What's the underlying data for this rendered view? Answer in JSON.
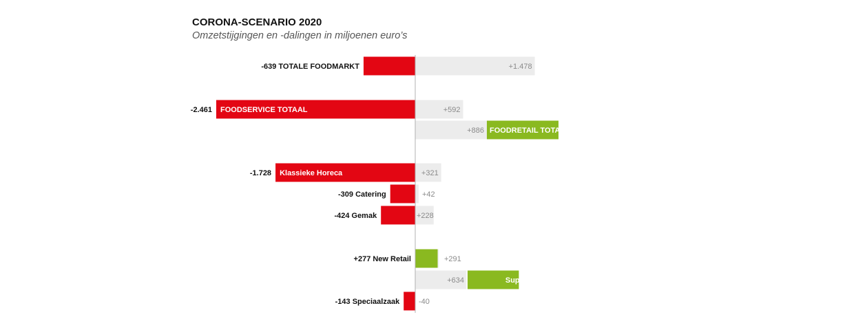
{
  "header": {
    "title": "CORONA-SCENARIO 2020",
    "subtitle": "Omzetstijgingen en -dalingen in miljoenen euro’s"
  },
  "colors": {
    "negative": "#e30613",
    "positive": "#8ab920",
    "background_bar": "#ececec",
    "axis": "#b0b0b0"
  },
  "chart_data": {
    "type": "bar",
    "orientation": "horizontal-diverging",
    "categories": [
      "TOTALE FOODMARKT",
      "FOODSERVICE TOTAAL",
      "FOODRETAIL TOTAAL",
      "Klassieke Horeca",
      "Catering",
      "Gemak",
      "New Retail",
      "Supermarkt",
      "Speciaalzaak"
    ],
    "series": [
      {
        "values": [
          -639,
          -2461,
          886,
          -1728,
          -309,
          -424,
          277,
          634,
          -143
        ]
      },
      {
        "values": [
          1478,
          592,
          886,
          321,
          42,
          228,
          291,
          634,
          -40
        ]
      }
    ],
    "labels": [
      {
        "main": "-639 TOTALE FOODMARKT",
        "alt": "+1.478"
      },
      {
        "main": "-2.461",
        "inner": "FOODSERVICE TOTAAL",
        "alt": "+592"
      },
      {
        "main": "+886",
        "inner": "FOODRETAIL TOTAAL",
        "alt": ""
      },
      {
        "main": "-1.728",
        "inner": "Klassieke Horeca",
        "alt": "+321"
      },
      {
        "main": "-309 Catering",
        "alt": "+42"
      },
      {
        "main": "-424 Gemak",
        "alt": "+228"
      },
      {
        "main": "+277 New Retail",
        "alt": "+291"
      },
      {
        "main": "+634",
        "inner": "Supermarkt",
        "alt": ""
      },
      {
        "main": "-143 Speciaalzaak",
        "alt": "-40"
      }
    ],
    "xlim": [
      -2500,
      2500
    ]
  }
}
